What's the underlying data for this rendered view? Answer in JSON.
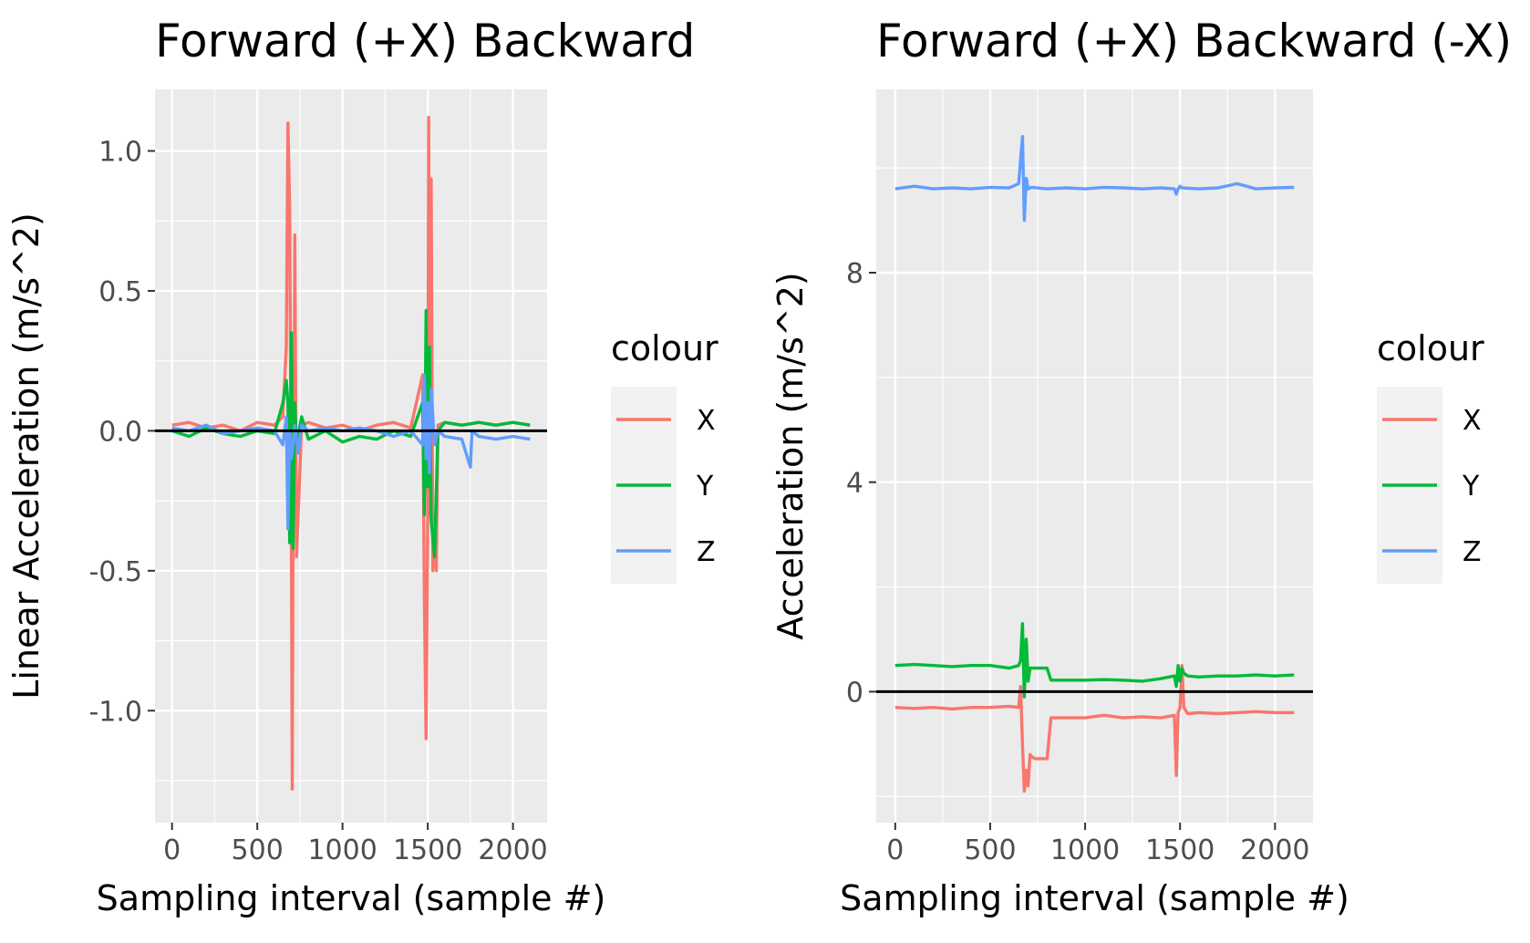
{
  "colors": {
    "X": "#F8766D",
    "Y": "#00BA38",
    "Z": "#619CFF",
    "panel_bg": "#EBEBEB",
    "grid": "#FFFFFF",
    "zero_line": "#000000"
  },
  "chart_data": [
    {
      "type": "line",
      "title": "Forward (+X) Backward",
      "xlabel": "Sampling interval (sample #)",
      "ylabel": "Linear Acceleration (m/s^2)",
      "xlim": [
        -100,
        2200
      ],
      "ylim": [
        -1.4,
        1.22
      ],
      "xticks": [
        0,
        500,
        1000,
        1500,
        2000
      ],
      "xtick_labels": [
        "0",
        "500",
        "1000",
        "1500",
        "2000"
      ],
      "yticks": [
        1.0,
        0.5,
        0.0,
        -0.5,
        -1.0
      ],
      "ytick_labels": [
        "1.0",
        "0.5",
        "0.0",
        "-0.5",
        "-1.0"
      ],
      "hline": 0,
      "legend": {
        "title": "colour",
        "position": "right"
      },
      "series": [
        {
          "name": "X",
          "color": "#F8766D",
          "x": [
            0,
            100,
            200,
            300,
            400,
            500,
            600,
            650,
            670,
            680,
            690,
            700,
            705,
            710,
            715,
            720,
            730,
            760,
            800,
            900,
            1000,
            1100,
            1200,
            1300,
            1400,
            1470,
            1480,
            1490,
            1500,
            1505,
            1510,
            1515,
            1520,
            1530,
            1540,
            1550,
            1560,
            1600,
            1700,
            1800,
            1900,
            2000,
            2100
          ],
          "y": [
            0.02,
            0.03,
            0.01,
            0.02,
            0.0,
            0.03,
            0.02,
            0.05,
            0.3,
            1.1,
            0.8,
            -0.4,
            -1.28,
            -0.3,
            -0.2,
            0.7,
            -0.45,
            0.02,
            0.03,
            0.01,
            0.02,
            0.0,
            0.02,
            0.03,
            0.01,
            0.2,
            -0.6,
            -1.1,
            -0.3,
            1.12,
            0.5,
            -0.3,
            0.9,
            -0.5,
            -0.3,
            -0.5,
            0.02,
            0.03,
            0.02,
            0.03,
            0.02,
            0.03,
            0.02
          ]
        },
        {
          "name": "Y",
          "color": "#00BA38",
          "x": [
            0,
            100,
            200,
            300,
            400,
            500,
            600,
            650,
            670,
            680,
            690,
            700,
            710,
            720,
            730,
            760,
            800,
            900,
            1000,
            1100,
            1200,
            1300,
            1400,
            1470,
            1480,
            1490,
            1500,
            1510,
            1520,
            1540,
            1560,
            1600,
            1700,
            1800,
            1900,
            2000,
            2100
          ],
          "y": [
            0.0,
            -0.02,
            0.01,
            -0.01,
            -0.02,
            0.0,
            -0.01,
            0.1,
            0.18,
            0.1,
            -0.4,
            0.35,
            -0.42,
            0.1,
            -0.05,
            0.05,
            -0.03,
            0.0,
            -0.04,
            -0.02,
            -0.03,
            0.0,
            -0.02,
            0.1,
            -0.3,
            0.43,
            -0.2,
            0.3,
            -0.32,
            -0.45,
            0.0,
            0.03,
            0.02,
            0.03,
            0.02,
            0.03,
            0.02
          ]
        },
        {
          "name": "Z",
          "color": "#619CFF",
          "x": [
            0,
            100,
            200,
            300,
            400,
            500,
            600,
            650,
            670,
            680,
            690,
            700,
            710,
            720,
            740,
            760,
            800,
            900,
            1000,
            1100,
            1200,
            1300,
            1400,
            1470,
            1480,
            1490,
            1500,
            1510,
            1520,
            1540,
            1560,
            1600,
            1700,
            1750,
            1760,
            1800,
            1900,
            2000,
            2100
          ],
          "y": [
            0.01,
            0.0,
            0.02,
            -0.01,
            0.0,
            0.01,
            0.0,
            -0.05,
            0.05,
            -0.35,
            0.0,
            -0.1,
            -0.05,
            0.02,
            -0.08,
            0.02,
            0.0,
            0.01,
            0.0,
            0.01,
            0.0,
            -0.02,
            0.0,
            -0.05,
            0.2,
            -0.1,
            0.1,
            -0.15,
            0.15,
            -0.05,
            0.0,
            -0.02,
            -0.03,
            -0.13,
            0.0,
            -0.02,
            -0.03,
            -0.02,
            -0.03
          ]
        }
      ]
    },
    {
      "type": "line",
      "title": "Forward (+X) Backward (-X)",
      "xlabel": "Sampling interval (sample #)",
      "ylabel": "Acceleration (m/s^2)",
      "xlim": [
        -100,
        2200
      ],
      "ylim": [
        -2.5,
        11.5
      ],
      "xticks": [
        0,
        500,
        1000,
        1500,
        2000
      ],
      "xtick_labels": [
        "0",
        "500",
        "1000",
        "1500",
        "2000"
      ],
      "yticks": [
        8,
        4,
        0
      ],
      "ytick_labels": [
        "8",
        "4",
        "0"
      ],
      "hline": 0,
      "legend": {
        "title": "colour",
        "position": "right"
      },
      "series": [
        {
          "name": "X",
          "color": "#F8766D",
          "x": [
            0,
            100,
            200,
            300,
            400,
            500,
            600,
            650,
            660,
            670,
            680,
            690,
            700,
            710,
            720,
            740,
            800,
            820,
            900,
            1000,
            1100,
            1200,
            1300,
            1400,
            1470,
            1480,
            1490,
            1500,
            1510,
            1520,
            1540,
            1600,
            1700,
            1800,
            1900,
            2000,
            2100
          ],
          "y": [
            -0.3,
            -0.32,
            -0.3,
            -0.33,
            -0.3,
            -0.3,
            -0.28,
            -0.3,
            0.1,
            -1.0,
            -1.9,
            -1.5,
            -1.8,
            -1.2,
            -1.25,
            -1.28,
            -1.28,
            -0.5,
            -0.5,
            -0.5,
            -0.45,
            -0.5,
            -0.48,
            -0.5,
            -0.45,
            -1.6,
            -0.4,
            -0.3,
            0.5,
            -0.3,
            -0.42,
            -0.4,
            -0.42,
            -0.4,
            -0.38,
            -0.4,
            -0.4
          ]
        },
        {
          "name": "Y",
          "color": "#00BA38",
          "x": [
            0,
            100,
            200,
            300,
            400,
            500,
            600,
            650,
            660,
            670,
            680,
            690,
            700,
            710,
            720,
            740,
            800,
            820,
            900,
            1000,
            1100,
            1200,
            1300,
            1400,
            1470,
            1480,
            1490,
            1500,
            1510,
            1520,
            1540,
            1600,
            1700,
            1800,
            1900,
            2000,
            2100
          ],
          "y": [
            0.5,
            0.52,
            0.5,
            0.48,
            0.5,
            0.5,
            0.45,
            0.5,
            0.6,
            1.3,
            -0.1,
            1.0,
            0.2,
            0.45,
            0.45,
            0.45,
            0.45,
            0.22,
            0.22,
            0.22,
            0.23,
            0.22,
            0.2,
            0.25,
            0.3,
            0.1,
            0.5,
            0.2,
            0.45,
            0.35,
            0.3,
            0.28,
            0.3,
            0.3,
            0.32,
            0.3,
            0.32
          ]
        },
        {
          "name": "Z",
          "color": "#619CFF",
          "x": [
            0,
            100,
            200,
            300,
            400,
            500,
            600,
            650,
            670,
            680,
            690,
            700,
            710,
            720,
            800,
            900,
            1000,
            1100,
            1200,
            1300,
            1400,
            1470,
            1480,
            1490,
            1500,
            1510,
            1600,
            1700,
            1800,
            1850,
            1900,
            2000,
            2100
          ],
          "y": [
            9.6,
            9.65,
            9.6,
            9.62,
            9.6,
            9.63,
            9.62,
            9.7,
            10.6,
            9.0,
            9.8,
            9.6,
            9.62,
            9.63,
            9.6,
            9.62,
            9.6,
            9.63,
            9.62,
            9.6,
            9.62,
            9.6,
            9.5,
            9.6,
            9.65,
            9.62,
            9.6,
            9.62,
            9.7,
            9.65,
            9.6,
            9.62,
            9.63
          ]
        }
      ]
    }
  ]
}
